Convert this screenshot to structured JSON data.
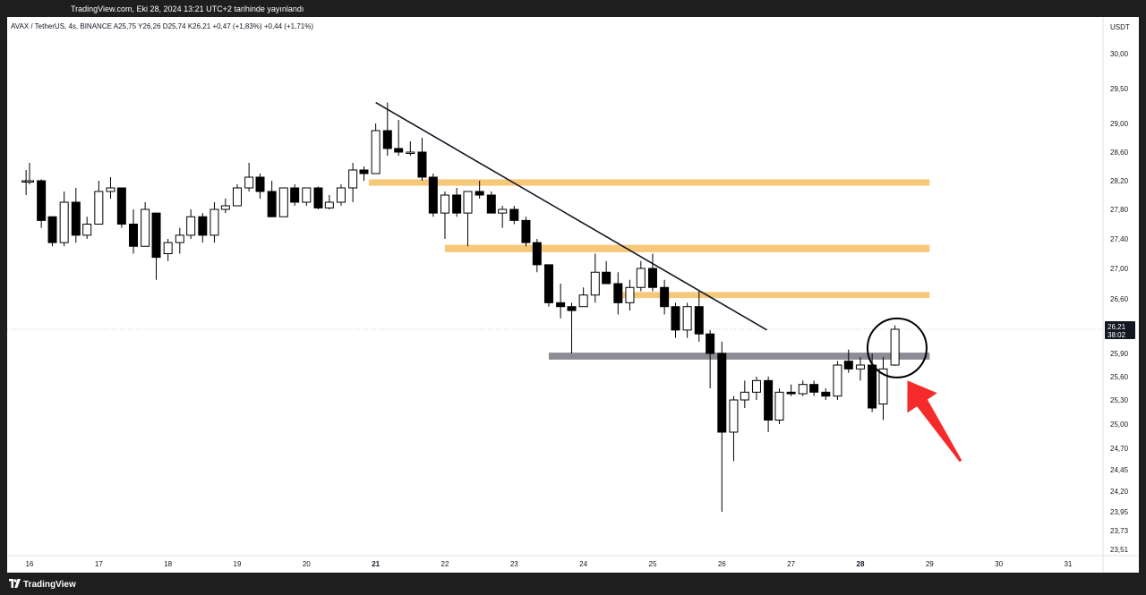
{
  "header": {
    "publish_text": "TradingView.com, Eki 28, 2024 13:21 UTC+2 tarihinde yayınlandı"
  },
  "legend": {
    "symbol": "AVAX / TetherUS, 4s, BINANCE",
    "open_label": "A",
    "open": "25,75",
    "high_label": "Y",
    "high": "26,26",
    "low_label": "D",
    "low": "25,74",
    "close_label": "K",
    "close": "26,21",
    "change": "+0,47 (+1,83%)",
    "change2": "+0,44 (+1,71%)"
  },
  "footer": {
    "brand": "TradingView"
  },
  "colors": {
    "resistance_zone": "#f6c87a",
    "support_zone": "#8c8c94",
    "trendline": "#131722",
    "annotation_arrow": "#f52a2a",
    "candle_up_fill": "#ffffff",
    "candle_down_fill": "#000000"
  },
  "chart_data": {
    "type": "candlestick",
    "currency": "USDT",
    "last_price_label": "26,21",
    "countdown_label": "38:02",
    "y_ticks": [
      "30,00",
      "29,50",
      "29,00",
      "28,60",
      "28,20",
      "27,80",
      "27,40",
      "27,00",
      "26,60",
      "25,90",
      "25,60",
      "25,30",
      "25,00",
      "24,70",
      "24,45",
      "24,20",
      "23,95",
      "23,73",
      "23,51"
    ],
    "x_ticks": [
      "16",
      "17",
      "18",
      "19",
      "20",
      "21",
      "22",
      "23",
      "24",
      "25",
      "26",
      "27",
      "28",
      "29",
      "30",
      "31"
    ],
    "x_tick_days": [
      16,
      17,
      18,
      19,
      20,
      21,
      22,
      23,
      24,
      25,
      26,
      27,
      28,
      29,
      30,
      31
    ],
    "candles": [
      {
        "t": 15.95,
        "o": 28.2,
        "h": 28.35,
        "l": 28.0,
        "c": 28.2
      },
      {
        "t": 16.0,
        "o": 28.2,
        "h": 28.45,
        "l": 28.15,
        "c": 28.2
      },
      {
        "t": 16.17,
        "o": 28.2,
        "h": 28.22,
        "l": 27.55,
        "c": 27.65
      },
      {
        "t": 16.33,
        "o": 27.7,
        "h": 27.7,
        "l": 27.3,
        "c": 27.35
      },
      {
        "t": 16.5,
        "o": 27.35,
        "h": 28.05,
        "l": 27.3,
        "c": 27.9
      },
      {
        "t": 16.67,
        "o": 27.9,
        "h": 28.1,
        "l": 27.35,
        "c": 27.45
      },
      {
        "t": 16.83,
        "o": 27.45,
        "h": 27.7,
        "l": 27.4,
        "c": 27.6
      },
      {
        "t": 17.0,
        "o": 27.6,
        "h": 28.2,
        "l": 27.6,
        "c": 28.05
      },
      {
        "t": 17.17,
        "o": 28.05,
        "h": 28.25,
        "l": 27.95,
        "c": 28.1
      },
      {
        "t": 17.33,
        "o": 28.1,
        "h": 28.1,
        "l": 27.55,
        "c": 27.6
      },
      {
        "t": 17.5,
        "o": 27.6,
        "h": 27.8,
        "l": 27.2,
        "c": 27.3
      },
      {
        "t": 17.67,
        "o": 27.3,
        "h": 27.9,
        "l": 27.3,
        "c": 27.8
      },
      {
        "t": 17.83,
        "o": 27.75,
        "h": 27.75,
        "l": 26.85,
        "c": 27.15
      },
      {
        "t": 18.0,
        "o": 27.2,
        "h": 27.4,
        "l": 27.1,
        "c": 27.35
      },
      {
        "t": 18.17,
        "o": 27.35,
        "h": 27.55,
        "l": 27.2,
        "c": 27.45
      },
      {
        "t": 18.33,
        "o": 27.45,
        "h": 27.8,
        "l": 27.4,
        "c": 27.7
      },
      {
        "t": 18.5,
        "o": 27.7,
        "h": 27.75,
        "l": 27.35,
        "c": 27.45
      },
      {
        "t": 18.67,
        "o": 27.45,
        "h": 27.9,
        "l": 27.35,
        "c": 27.8
      },
      {
        "t": 18.83,
        "o": 27.8,
        "h": 27.95,
        "l": 27.75,
        "c": 27.85
      },
      {
        "t": 19.0,
        "o": 27.85,
        "h": 28.15,
        "l": 27.85,
        "c": 28.1
      },
      {
        "t": 19.17,
        "o": 28.1,
        "h": 28.45,
        "l": 28.05,
        "c": 28.25
      },
      {
        "t": 19.33,
        "o": 28.25,
        "h": 28.3,
        "l": 27.95,
        "c": 28.05
      },
      {
        "t": 19.5,
        "o": 28.05,
        "h": 28.2,
        "l": 27.7,
        "c": 27.7
      },
      {
        "t": 19.67,
        "o": 27.7,
        "h": 28.1,
        "l": 27.7,
        "c": 28.1
      },
      {
        "t": 19.83,
        "o": 28.1,
        "h": 28.15,
        "l": 27.85,
        "c": 27.9
      },
      {
        "t": 20.0,
        "o": 27.9,
        "h": 28.1,
        "l": 27.85,
        "c": 28.1
      },
      {
        "t": 20.17,
        "o": 28.1,
        "h": 28.12,
        "l": 27.8,
        "c": 27.82
      },
      {
        "t": 20.33,
        "o": 27.82,
        "h": 28.0,
        "l": 27.8,
        "c": 27.9
      },
      {
        "t": 20.5,
        "o": 27.9,
        "h": 28.15,
        "l": 27.85,
        "c": 28.1
      },
      {
        "t": 20.67,
        "o": 28.1,
        "h": 28.45,
        "l": 27.9,
        "c": 28.35
      },
      {
        "t": 20.83,
        "o": 28.35,
        "h": 28.4,
        "l": 28.2,
        "c": 28.3
      },
      {
        "t": 21.0,
        "o": 28.3,
        "h": 29.0,
        "l": 28.3,
        "c": 28.9
      },
      {
        "t": 21.17,
        "o": 28.9,
        "h": 29.3,
        "l": 28.55,
        "c": 28.65
      },
      {
        "t": 21.33,
        "o": 28.65,
        "h": 29.05,
        "l": 28.55,
        "c": 28.6
      },
      {
        "t": 21.5,
        "o": 28.6,
        "h": 28.75,
        "l": 28.55,
        "c": 28.6
      },
      {
        "t": 21.67,
        "o": 28.6,
        "h": 28.8,
        "l": 28.2,
        "c": 28.25
      },
      {
        "t": 21.83,
        "o": 28.25,
        "h": 28.3,
        "l": 27.7,
        "c": 27.75
      },
      {
        "t": 22.0,
        "o": 27.75,
        "h": 28.05,
        "l": 27.4,
        "c": 28.0
      },
      {
        "t": 22.17,
        "o": 28.0,
        "h": 28.1,
        "l": 27.7,
        "c": 27.75
      },
      {
        "t": 22.33,
        "o": 27.75,
        "h": 28.05,
        "l": 27.3,
        "c": 28.05
      },
      {
        "t": 22.5,
        "o": 28.05,
        "h": 28.2,
        "l": 27.95,
        "c": 28.0
      },
      {
        "t": 22.67,
        "o": 28.0,
        "h": 28.05,
        "l": 27.75,
        "c": 27.75
      },
      {
        "t": 22.83,
        "o": 27.75,
        "h": 27.85,
        "l": 27.55,
        "c": 27.8
      },
      {
        "t": 23.0,
        "o": 27.8,
        "h": 27.85,
        "l": 27.6,
        "c": 27.65
      },
      {
        "t": 23.17,
        "o": 27.65,
        "h": 27.7,
        "l": 27.3,
        "c": 27.35
      },
      {
        "t": 23.33,
        "o": 27.35,
        "h": 27.4,
        "l": 26.95,
        "c": 27.05
      },
      {
        "t": 23.5,
        "o": 27.05,
        "h": 27.05,
        "l": 26.5,
        "c": 26.55
      },
      {
        "t": 23.67,
        "o": 26.55,
        "h": 26.8,
        "l": 26.35,
        "c": 26.5
      },
      {
        "t": 23.83,
        "o": 26.5,
        "h": 26.55,
        "l": 25.9,
        "c": 26.45
      },
      {
        "t": 24.0,
        "o": 26.5,
        "h": 26.75,
        "l": 26.5,
        "c": 26.65
      },
      {
        "t": 24.17,
        "o": 26.65,
        "h": 27.2,
        "l": 26.55,
        "c": 26.95
      },
      {
        "t": 24.33,
        "o": 26.95,
        "h": 27.1,
        "l": 26.8,
        "c": 26.8
      },
      {
        "t": 24.5,
        "o": 26.8,
        "h": 26.95,
        "l": 26.4,
        "c": 26.55
      },
      {
        "t": 24.67,
        "o": 26.55,
        "h": 26.85,
        "l": 26.45,
        "c": 26.75
      },
      {
        "t": 24.83,
        "o": 26.75,
        "h": 27.1,
        "l": 26.7,
        "c": 27.0
      },
      {
        "t": 25.0,
        "o": 27.0,
        "h": 27.2,
        "l": 26.7,
        "c": 26.75
      },
      {
        "t": 25.17,
        "o": 26.75,
        "h": 26.85,
        "l": 26.4,
        "c": 26.5
      },
      {
        "t": 25.33,
        "o": 26.5,
        "h": 26.55,
        "l": 26.1,
        "c": 26.2
      },
      {
        "t": 25.5,
        "o": 26.2,
        "h": 26.55,
        "l": 26.1,
        "c": 26.5
      },
      {
        "t": 25.67,
        "o": 26.5,
        "h": 26.7,
        "l": 26.05,
        "c": 26.15
      },
      {
        "t": 25.83,
        "o": 26.15,
        "h": 26.2,
        "l": 25.45,
        "c": 25.9
      },
      {
        "t": 26.0,
        "o": 25.9,
        "h": 26.05,
        "l": 23.95,
        "c": 24.9
      },
      {
        "t": 26.17,
        "o": 24.9,
        "h": 25.35,
        "l": 24.55,
        "c": 25.3
      },
      {
        "t": 26.33,
        "o": 25.3,
        "h": 25.55,
        "l": 25.2,
        "c": 25.4
      },
      {
        "t": 26.5,
        "o": 25.4,
        "h": 25.6,
        "l": 25.3,
        "c": 25.55
      },
      {
        "t": 26.67,
        "o": 25.55,
        "h": 25.6,
        "l": 24.9,
        "c": 25.05
      },
      {
        "t": 26.83,
        "o": 25.05,
        "h": 25.45,
        "l": 25.0,
        "c": 25.4
      },
      {
        "t": 27.0,
        "o": 25.4,
        "h": 25.5,
        "l": 25.35,
        "c": 25.38
      },
      {
        "t": 27.17,
        "o": 25.38,
        "h": 25.55,
        "l": 25.35,
        "c": 25.5
      },
      {
        "t": 27.33,
        "o": 25.5,
        "h": 25.55,
        "l": 25.35,
        "c": 25.4
      },
      {
        "t": 27.5,
        "o": 25.4,
        "h": 25.45,
        "l": 25.3,
        "c": 25.35
      },
      {
        "t": 27.67,
        "o": 25.35,
        "h": 25.8,
        "l": 25.3,
        "c": 25.75
      },
      {
        "t": 27.83,
        "o": 25.8,
        "h": 25.95,
        "l": 25.65,
        "c": 25.7
      },
      {
        "t": 28.0,
        "o": 25.7,
        "h": 25.85,
        "l": 25.55,
        "c": 25.75
      },
      {
        "t": 28.17,
        "o": 25.75,
        "h": 25.9,
        "l": 25.15,
        "c": 25.2
      },
      {
        "t": 28.33,
        "o": 25.25,
        "h": 25.85,
        "l": 25.05,
        "c": 25.7
      },
      {
        "t": 28.5,
        "o": 25.75,
        "h": 26.26,
        "l": 25.74,
        "c": 26.21
      }
    ],
    "zones": [
      {
        "type": "resistance",
        "top": 28.22,
        "bottom": 28.13,
        "start": 20.9,
        "end": 29.0
      },
      {
        "type": "resistance",
        "top": 27.32,
        "bottom": 27.22,
        "start": 22.0,
        "end": 29.0
      },
      {
        "type": "resistance",
        "top": 26.69,
        "bottom": 26.61,
        "start": 24.5,
        "end": 29.0
      },
      {
        "type": "support",
        "top": 25.91,
        "bottom": 25.82,
        "start": 23.5,
        "end": 29.0
      }
    ],
    "trendline": {
      "x1": 21.0,
      "y1": 29.3,
      "x2": 26.65,
      "y2": 26.2
    },
    "annotation_circle": {
      "t": 28.53,
      "price": 25.97
    },
    "annotation_arrow": {
      "from_t": 29.45,
      "from_price": 24.55,
      "to_t": 28.68,
      "to_price": 25.55
    }
  }
}
